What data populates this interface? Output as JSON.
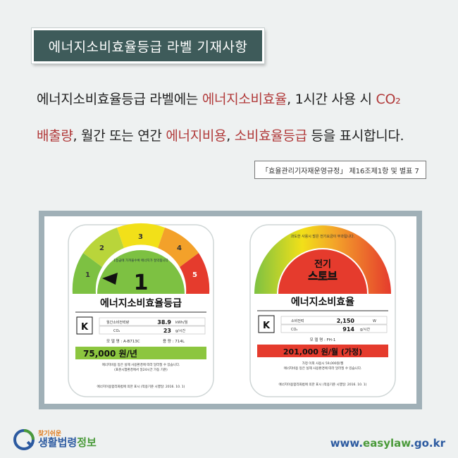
{
  "header": {
    "title": "에너지소비효율등급 라벨 기재사항"
  },
  "description": {
    "line1": [
      {
        "text": "에너지소비효율등급 라벨에는 ",
        "hl": false
      },
      {
        "text": "에너지소비효율",
        "hl": true
      },
      {
        "text": ", 1시간 사용 시 ",
        "hl": false
      },
      {
        "text": "CO₂",
        "hl": true
      }
    ],
    "line2": [
      {
        "text": "배출량",
        "hl": true
      },
      {
        "text": ", 월간 또는 연간 ",
        "hl": false
      },
      {
        "text": "에너지비용",
        "hl": true
      },
      {
        "text": ", ",
        "hl": false
      },
      {
        "text": "소비효율등급",
        "hl": true
      },
      {
        "text": " 등을 표시합니다.",
        "hl": false
      }
    ]
  },
  "source": "「효율관리기자재운영규정」 제16조제1항 및 별표 7",
  "colors": {
    "accent": "#b13a3a",
    "title_bg": "#3e5b5a",
    "grade1": "#7dc142",
    "grade2": "#b9d53a",
    "grade3": "#f2e019",
    "grade4": "#f3a12a",
    "grade5": "#e53b2d",
    "cost_green": "#8cc63f",
    "cost_red": "#e53b2d"
  },
  "label_left": {
    "grades": [
      "1",
      "2",
      "3",
      "4",
      "5"
    ],
    "arc_note": "1등급에 가까울수록 에너지가 절약됩니다",
    "grade_value": "1",
    "title": "에너지소비효율등급",
    "rows": [
      {
        "label": "월간소비전력량",
        "value": "38.9",
        "unit": "kWh/월"
      },
      {
        "label": "CO₂",
        "value": "23",
        "unit": "g/시간"
      }
    ],
    "model": "모 델 명 : A-B713C",
    "capacity": "용 량 : 714L",
    "cost": "75,000 원/년",
    "note1": "에너지비용 등은 실제 사용환경에 따라 달라질 수 있습니다.",
    "note2": "(표준시험환경에서 일24시간 가동 기준)",
    "footer": "에너지이용합리화법에 의한 표시 (적용기준 시행일: 2016. 10. 1)"
  },
  "label_right": {
    "arc_note": "과도한 사용시 많은 전기요금이 부과됩니다.",
    "product_line1": "전기",
    "product_line2": "스토브",
    "title": "에너지소비효율",
    "rows": [
      {
        "label": "소비전력",
        "value": "2,150",
        "unit": "W"
      },
      {
        "label": "CO₂",
        "value": "914",
        "unit": "g/시간"
      }
    ],
    "model": "모 델 명 : FH-1",
    "cost": "201,000 원/월 (가정)",
    "note1": "가정 이외 사용시 59,000원/월",
    "note2": "에너지비용 등은 실제 사용환경에 따라 달라질 수 있습니다.",
    "footer": "에너지이용합리화법에 의한 표시 (적용기준 시행일: 2016. 10. 1)"
  },
  "footer": {
    "logo_sub": "찾기쉬운",
    "logo_main_a": "생활법령",
    "logo_main_b": "정보",
    "url_a": "www.",
    "url_b": "easylaw",
    "url_c": ".go.kr"
  }
}
